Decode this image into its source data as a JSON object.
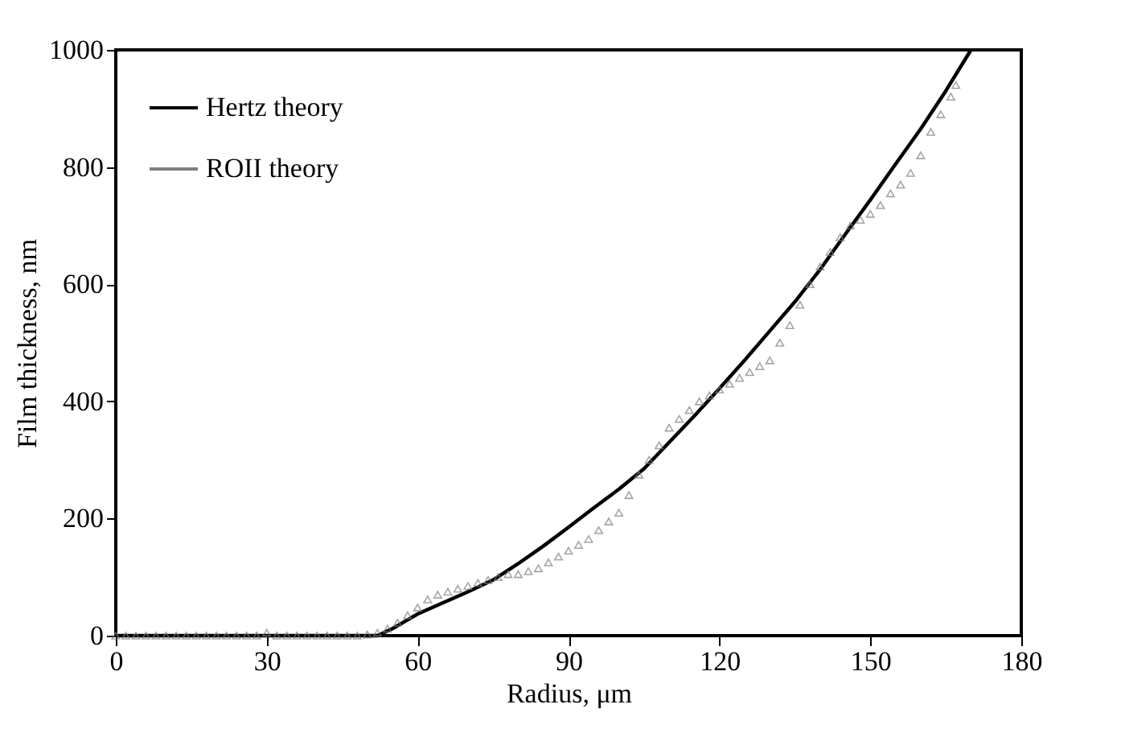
{
  "chart_data": {
    "type": "line",
    "xlabel": "Radius, μm",
    "ylabel": "Film thickness, nm",
    "xlim": [
      0,
      180
    ],
    "ylim": [
      0,
      1000
    ],
    "xticks": [
      0,
      30,
      60,
      90,
      120,
      150,
      180
    ],
    "yticks": [
      0,
      200,
      400,
      600,
      800,
      1000
    ],
    "grid": false,
    "legend": "top left",
    "series": [
      {
        "name": "Hertz theory",
        "color": "#000000",
        "marker": "none",
        "line_style": "solid",
        "x": [
          0,
          10,
          20,
          30,
          40,
          50,
          52,
          55,
          60,
          65,
          70,
          75,
          80,
          85,
          90,
          95,
          100,
          105,
          110,
          115,
          120,
          125,
          130,
          135,
          140,
          145,
          150,
          155,
          160,
          165,
          170
        ],
        "values": [
          0,
          0,
          0,
          0,
          0,
          0,
          0,
          12,
          37,
          56,
          75,
          95,
          123,
          153,
          185,
          218,
          250,
          285,
          330,
          375,
          422,
          470,
          520,
          570,
          625,
          685,
          744,
          805,
          865,
          930,
          1000
        ]
      },
      {
        "name": "ROII theory",
        "type": "scatter",
        "color": "#7f7f7f",
        "marker": "triangle",
        "x": [
          0,
          2,
          4,
          6,
          8,
          10,
          12,
          14,
          16,
          18,
          20,
          22,
          24,
          26,
          28,
          30,
          32,
          34,
          36,
          38,
          40,
          42,
          44,
          46,
          48,
          50,
          52,
          54,
          56,
          58,
          60,
          62,
          64,
          66,
          68,
          70,
          72,
          74,
          76,
          78,
          80,
          82,
          84,
          86,
          88,
          90,
          92,
          94,
          96,
          98,
          100,
          102,
          104,
          106,
          108,
          110,
          112,
          114,
          116,
          118,
          120,
          122,
          124,
          126,
          128,
          130,
          132,
          134,
          136,
          138,
          140,
          142,
          144,
          146,
          148,
          150,
          152,
          154,
          156,
          158,
          160,
          162,
          164,
          166,
          167
        ],
        "values": [
          0,
          0,
          0,
          0,
          0,
          0,
          0,
          0,
          0,
          0,
          0,
          0,
          0,
          0,
          0,
          5,
          0,
          0,
          0,
          0,
          0,
          0,
          0,
          0,
          0,
          2,
          5,
          12,
          22,
          35,
          48,
          62,
          70,
          75,
          80,
          85,
          90,
          95,
          100,
          105,
          105,
          110,
          115,
          125,
          135,
          145,
          155,
          165,
          180,
          195,
          210,
          240,
          275,
          300,
          325,
          355,
          370,
          385,
          400,
          410,
          420,
          430,
          440,
          450,
          460,
          470,
          500,
          530,
          565,
          600,
          630,
          655,
          680,
          700,
          710,
          720,
          735,
          755,
          770,
          790,
          820,
          860,
          890,
          920,
          940
        ]
      }
    ]
  }
}
